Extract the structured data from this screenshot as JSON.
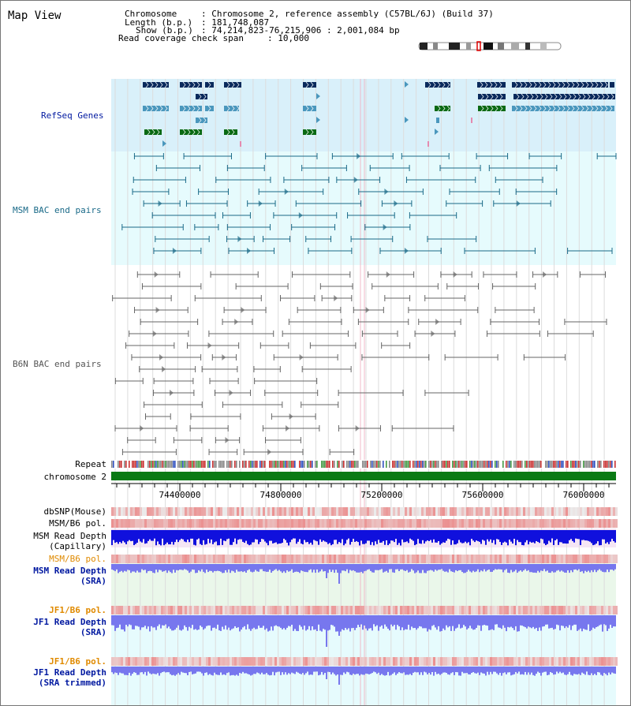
{
  "app_title": "Map View",
  "header": {
    "chromosome_label": "Chromosome",
    "chromosome_value": ": Chromosome 2, reference assembly (C57BL/6J) (Build 37)",
    "length_label": "Length (b.p.)",
    "length_value": ": 181,748,087",
    "show_label": "Show (b.p.)",
    "show_value": ": 74,214,823-76,215,906 : 2,001,084 bp",
    "coverage_label": "Read coverage check span",
    "coverage_value": ": 10,000"
  },
  "tracks": {
    "refseq_label": "RefSeq Genes",
    "msm_bac_label": "MSM BAC end pairs",
    "b6n_bac_label": "B6N BAC end pairs",
    "repeat_label": "Repeat",
    "chromosome_label": "chromosome 2",
    "dbsnp_label": "dbSNP(Mouse)",
    "msm_b6_pol_label": "MSM/B6 pol.",
    "msm_depth_cap_label1": "MSM Read Depth",
    "msm_depth_cap_label2": "(Capillary)",
    "msm_b6_pol2_label": "MSM/B6 pol.",
    "msm_depth_sra_label1": "MSM Read Depth",
    "msm_depth_sra_label2": "(SRA)",
    "jf1_pol_label": "JF1/B6 pol.",
    "jf1_depth_label1": "JF1 Read Depth",
    "jf1_depth_label2": "(SRA)",
    "jf1_pol2_label": "JF1/B6 pol.",
    "jf1_trim_label1": "JF1 Read Depth",
    "jf1_trim_label2": "(SRA trimmed)"
  },
  "axis": {
    "ticks": [
      "74400000",
      "74800000",
      "75200000",
      "75600000",
      "76000000"
    ]
  },
  "colors": {
    "refseq_bg": "#d9f0fa",
    "msm_bg": "#e6fbfd",
    "b6n_bg": "#ffffff",
    "gene_dark": "#0a2a5c",
    "gene_mid": "#4a97bd",
    "gene_green": "#0a6a14",
    "msm_pair": "#1a6a88",
    "b6n_pair": "#666666",
    "chromosome_bar": "#0a7a14",
    "depth_blue": "#1010dd",
    "depth_light": "#7777ee",
    "snp_red": "#e83030",
    "pol_orange": "#e08a00",
    "label_navy": "#0018a0"
  }
}
